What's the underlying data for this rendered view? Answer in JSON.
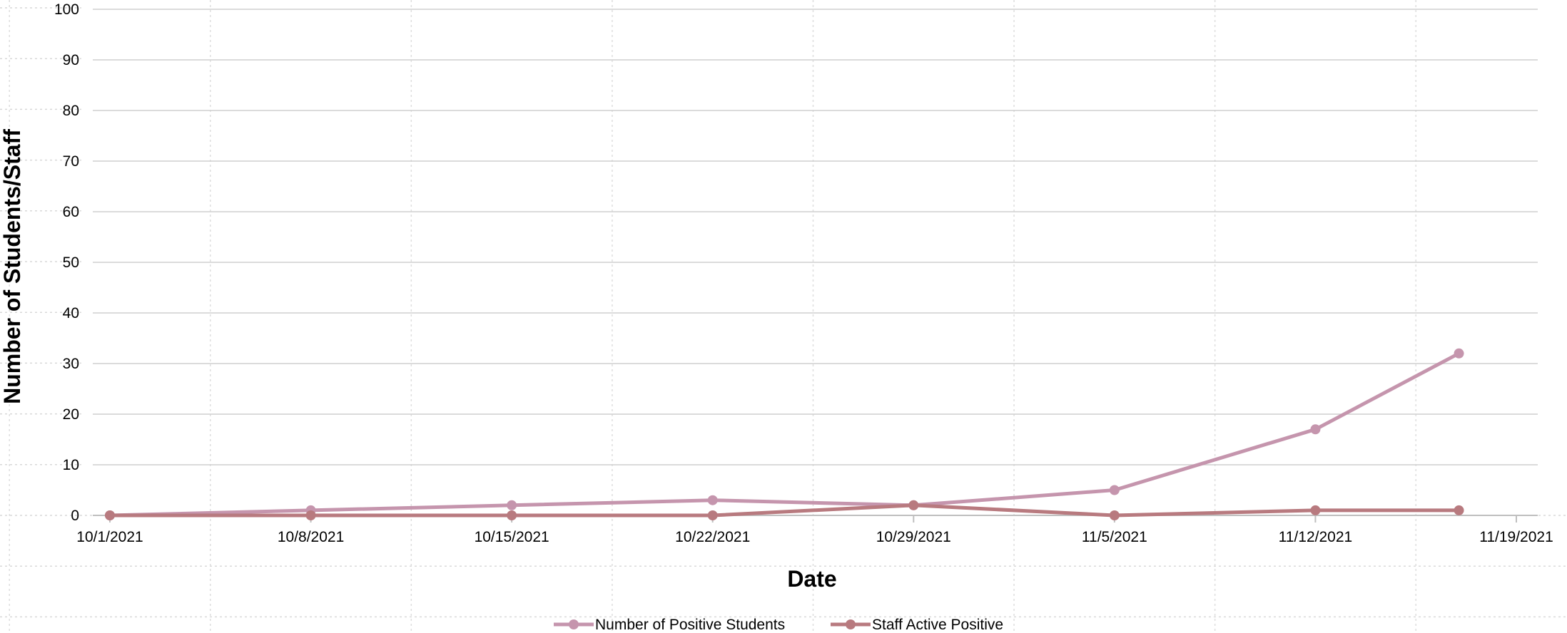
{
  "chart_data": {
    "type": "line",
    "title": "",
    "xlabel": "Date",
    "ylabel": "Number of Students/Staff",
    "ylim": [
      0,
      100
    ],
    "yticks": [
      0,
      10,
      20,
      30,
      40,
      50,
      60,
      70,
      80,
      90,
      100
    ],
    "xlim": [
      "2021-10-01",
      "2021-11-19"
    ],
    "xticks": [
      "10/1/2021",
      "10/8/2021",
      "10/15/2021",
      "10/22/2021",
      "10/29/2021",
      "11/5/2021",
      "11/12/2021",
      "11/19/2021"
    ],
    "x": [
      "2021-10-01",
      "2021-10-08",
      "2021-10-15",
      "2021-10-22",
      "2021-10-29",
      "2021-11-05",
      "2021-11-12",
      "2021-11-17"
    ],
    "grid": true,
    "legend_position": "bottom",
    "series": [
      {
        "name": "Number of Positive Students",
        "values": [
          0,
          1,
          2,
          3,
          2,
          5,
          17,
          32
        ],
        "color": "#c595ad"
      },
      {
        "name": "Staff Active Positive",
        "values": [
          0,
          0,
          0,
          0,
          2,
          0,
          1,
          1
        ],
        "color": "#b87a7f"
      }
    ]
  }
}
